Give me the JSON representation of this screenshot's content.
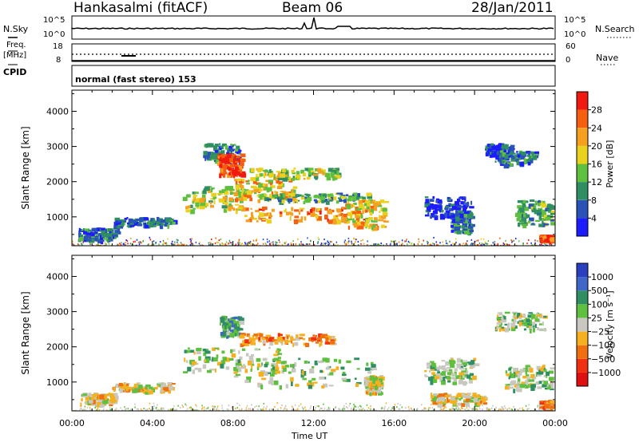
{
  "header": {
    "station": "Hankasalmi (fitACF)",
    "beam": "Beam 06",
    "date": "28/Jan/2011"
  },
  "strips": {
    "nsky_label": "N.Sky",
    "nsky_top": "10^5",
    "nsky_bottom": "10^0",
    "nsearch_label": "N.Search",
    "nsearch_top": "10^5",
    "nsearch_bottom": "10^0",
    "freq_label_1": "Freq.",
    "freq_label_2": "[MHz]",
    "freq_top": "18",
    "freq_bottom": "8",
    "nave_top": "60",
    "nave_bottom": "0",
    "nave_label": "Nave",
    "cpid_label": "CPID",
    "cpid_text": "normal (fast stereo) 153"
  },
  "colors": {
    "power": [
      "#1c1cff",
      "#2a52b8",
      "#2f8f63",
      "#5fbf3f",
      "#e8d21e",
      "#f5a020",
      "#f56010",
      "#f01a10"
    ],
    "velocity": [
      "#2a3fbf",
      "#3f66c8",
      "#2f8f63",
      "#5fbf3f",
      "#c8c8c0",
      "#f5b020",
      "#f07010",
      "#f03010",
      "#e01010"
    ]
  },
  "chart_data": [
    {
      "type": "heatmap",
      "panel": "power",
      "ylabel": "Slant Range [km]",
      "xlabel": "Time UT",
      "xlim": [
        0,
        24
      ],
      "ylim": [
        180,
        4600
      ],
      "xticks": [
        "00:00",
        "04:00",
        "08:00",
        "12:00",
        "16:00",
        "20:00",
        "00:00"
      ],
      "yticks": [
        1000,
        2000,
        3000,
        4000
      ],
      "colorbar": {
        "label": "Power [dB]",
        "ticks": [
          4,
          8,
          12,
          16,
          20,
          24,
          28
        ]
      },
      "regions": [
        {
          "t": [
            0.3,
            2.2
          ],
          "r": [
            350,
            700
          ],
          "level": 2
        },
        {
          "t": [
            2.0,
            5.0
          ],
          "r": [
            750,
            1000
          ],
          "level": 2
        },
        {
          "t": [
            5.5,
            8.5
          ],
          "r": [
            1200,
            1900
          ],
          "level": 4
        },
        {
          "t": [
            6.5,
            8.3
          ],
          "r": [
            2600,
            3100
          ],
          "level": 2
        },
        {
          "t": [
            7.2,
            8.4
          ],
          "r": [
            2200,
            2800
          ],
          "level": 7
        },
        {
          "t": [
            8.0,
            11.0
          ],
          "r": [
            1500,
            2100
          ],
          "level": 5
        },
        {
          "t": [
            8.8,
            13.2
          ],
          "r": [
            2100,
            2400
          ],
          "level": 4
        },
        {
          "t": [
            9.5,
            14.8
          ],
          "r": [
            1450,
            1700
          ],
          "level": 3
        },
        {
          "t": [
            8.5,
            14.5
          ],
          "r": [
            900,
            1300
          ],
          "level": 6
        },
        {
          "t": [
            13.5,
            15.5
          ],
          "r": [
            700,
            1500
          ],
          "level": 5
        },
        {
          "t": [
            17.5,
            19.8
          ],
          "r": [
            1000,
            1600
          ],
          "level": 1
        },
        {
          "t": [
            18.8,
            19.8
          ],
          "r": [
            600,
            1200
          ],
          "level": 2
        },
        {
          "t": [
            20.5,
            21.8
          ],
          "r": [
            2800,
            3100
          ],
          "level": 1
        },
        {
          "t": [
            21.0,
            23.0
          ],
          "r": [
            2500,
            2900
          ],
          "level": 2
        },
        {
          "t": [
            22.0,
            23.8
          ],
          "r": [
            800,
            1500
          ],
          "level": 3
        },
        {
          "t": [
            23.2,
            23.8
          ],
          "r": [
            350,
            500
          ],
          "level": 7
        }
      ]
    },
    {
      "type": "heatmap",
      "panel": "velocity",
      "ylabel": "Slant Range [km]",
      "xlabel": "Time UT",
      "xlim": [
        0,
        24
      ],
      "ylim": [
        180,
        4600
      ],
      "xticks": [
        "00:00",
        "04:00",
        "08:00",
        "12:00",
        "16:00",
        "20:00",
        "00:00"
      ],
      "yticks": [
        1000,
        2000,
        3000,
        4000
      ],
      "colorbar": {
        "label": "Velocity [m s⁻¹]",
        "ticks": [
          1000,
          500,
          100,
          25,
          -25,
          -100,
          -500,
          -1000
        ]
      },
      "regions": [
        {
          "t": [
            0.4,
            2.2
          ],
          "r": [
            350,
            700
          ],
          "level": 5
        },
        {
          "t": [
            2.0,
            5.0
          ],
          "r": [
            750,
            1000
          ],
          "level": 5
        },
        {
          "t": [
            5.5,
            10.5
          ],
          "r": [
            1300,
            2000
          ],
          "level": 4
        },
        {
          "t": [
            7.3,
            8.3
          ],
          "r": [
            2300,
            2900
          ],
          "level": 3
        },
        {
          "t": [
            8.3,
            13.0
          ],
          "r": [
            2100,
            2400
          ],
          "level": 6
        },
        {
          "t": [
            8.0,
            15.0
          ],
          "r": [
            900,
            1700
          ],
          "level": 4
        },
        {
          "t": [
            14.5,
            15.3
          ],
          "r": [
            700,
            1200
          ],
          "level": 5
        },
        {
          "t": [
            17.5,
            20.0
          ],
          "r": [
            1000,
            1700
          ],
          "level": 4
        },
        {
          "t": [
            17.8,
            20.5
          ],
          "r": [
            400,
            700
          ],
          "level": 5
        },
        {
          "t": [
            21.0,
            23.5
          ],
          "r": [
            2500,
            3000
          ],
          "level": 4
        },
        {
          "t": [
            21.5,
            23.8
          ],
          "r": [
            800,
            1500
          ],
          "level": 4
        },
        {
          "t": [
            23.2,
            23.8
          ],
          "r": [
            300,
            500
          ],
          "level": 6
        }
      ]
    }
  ]
}
